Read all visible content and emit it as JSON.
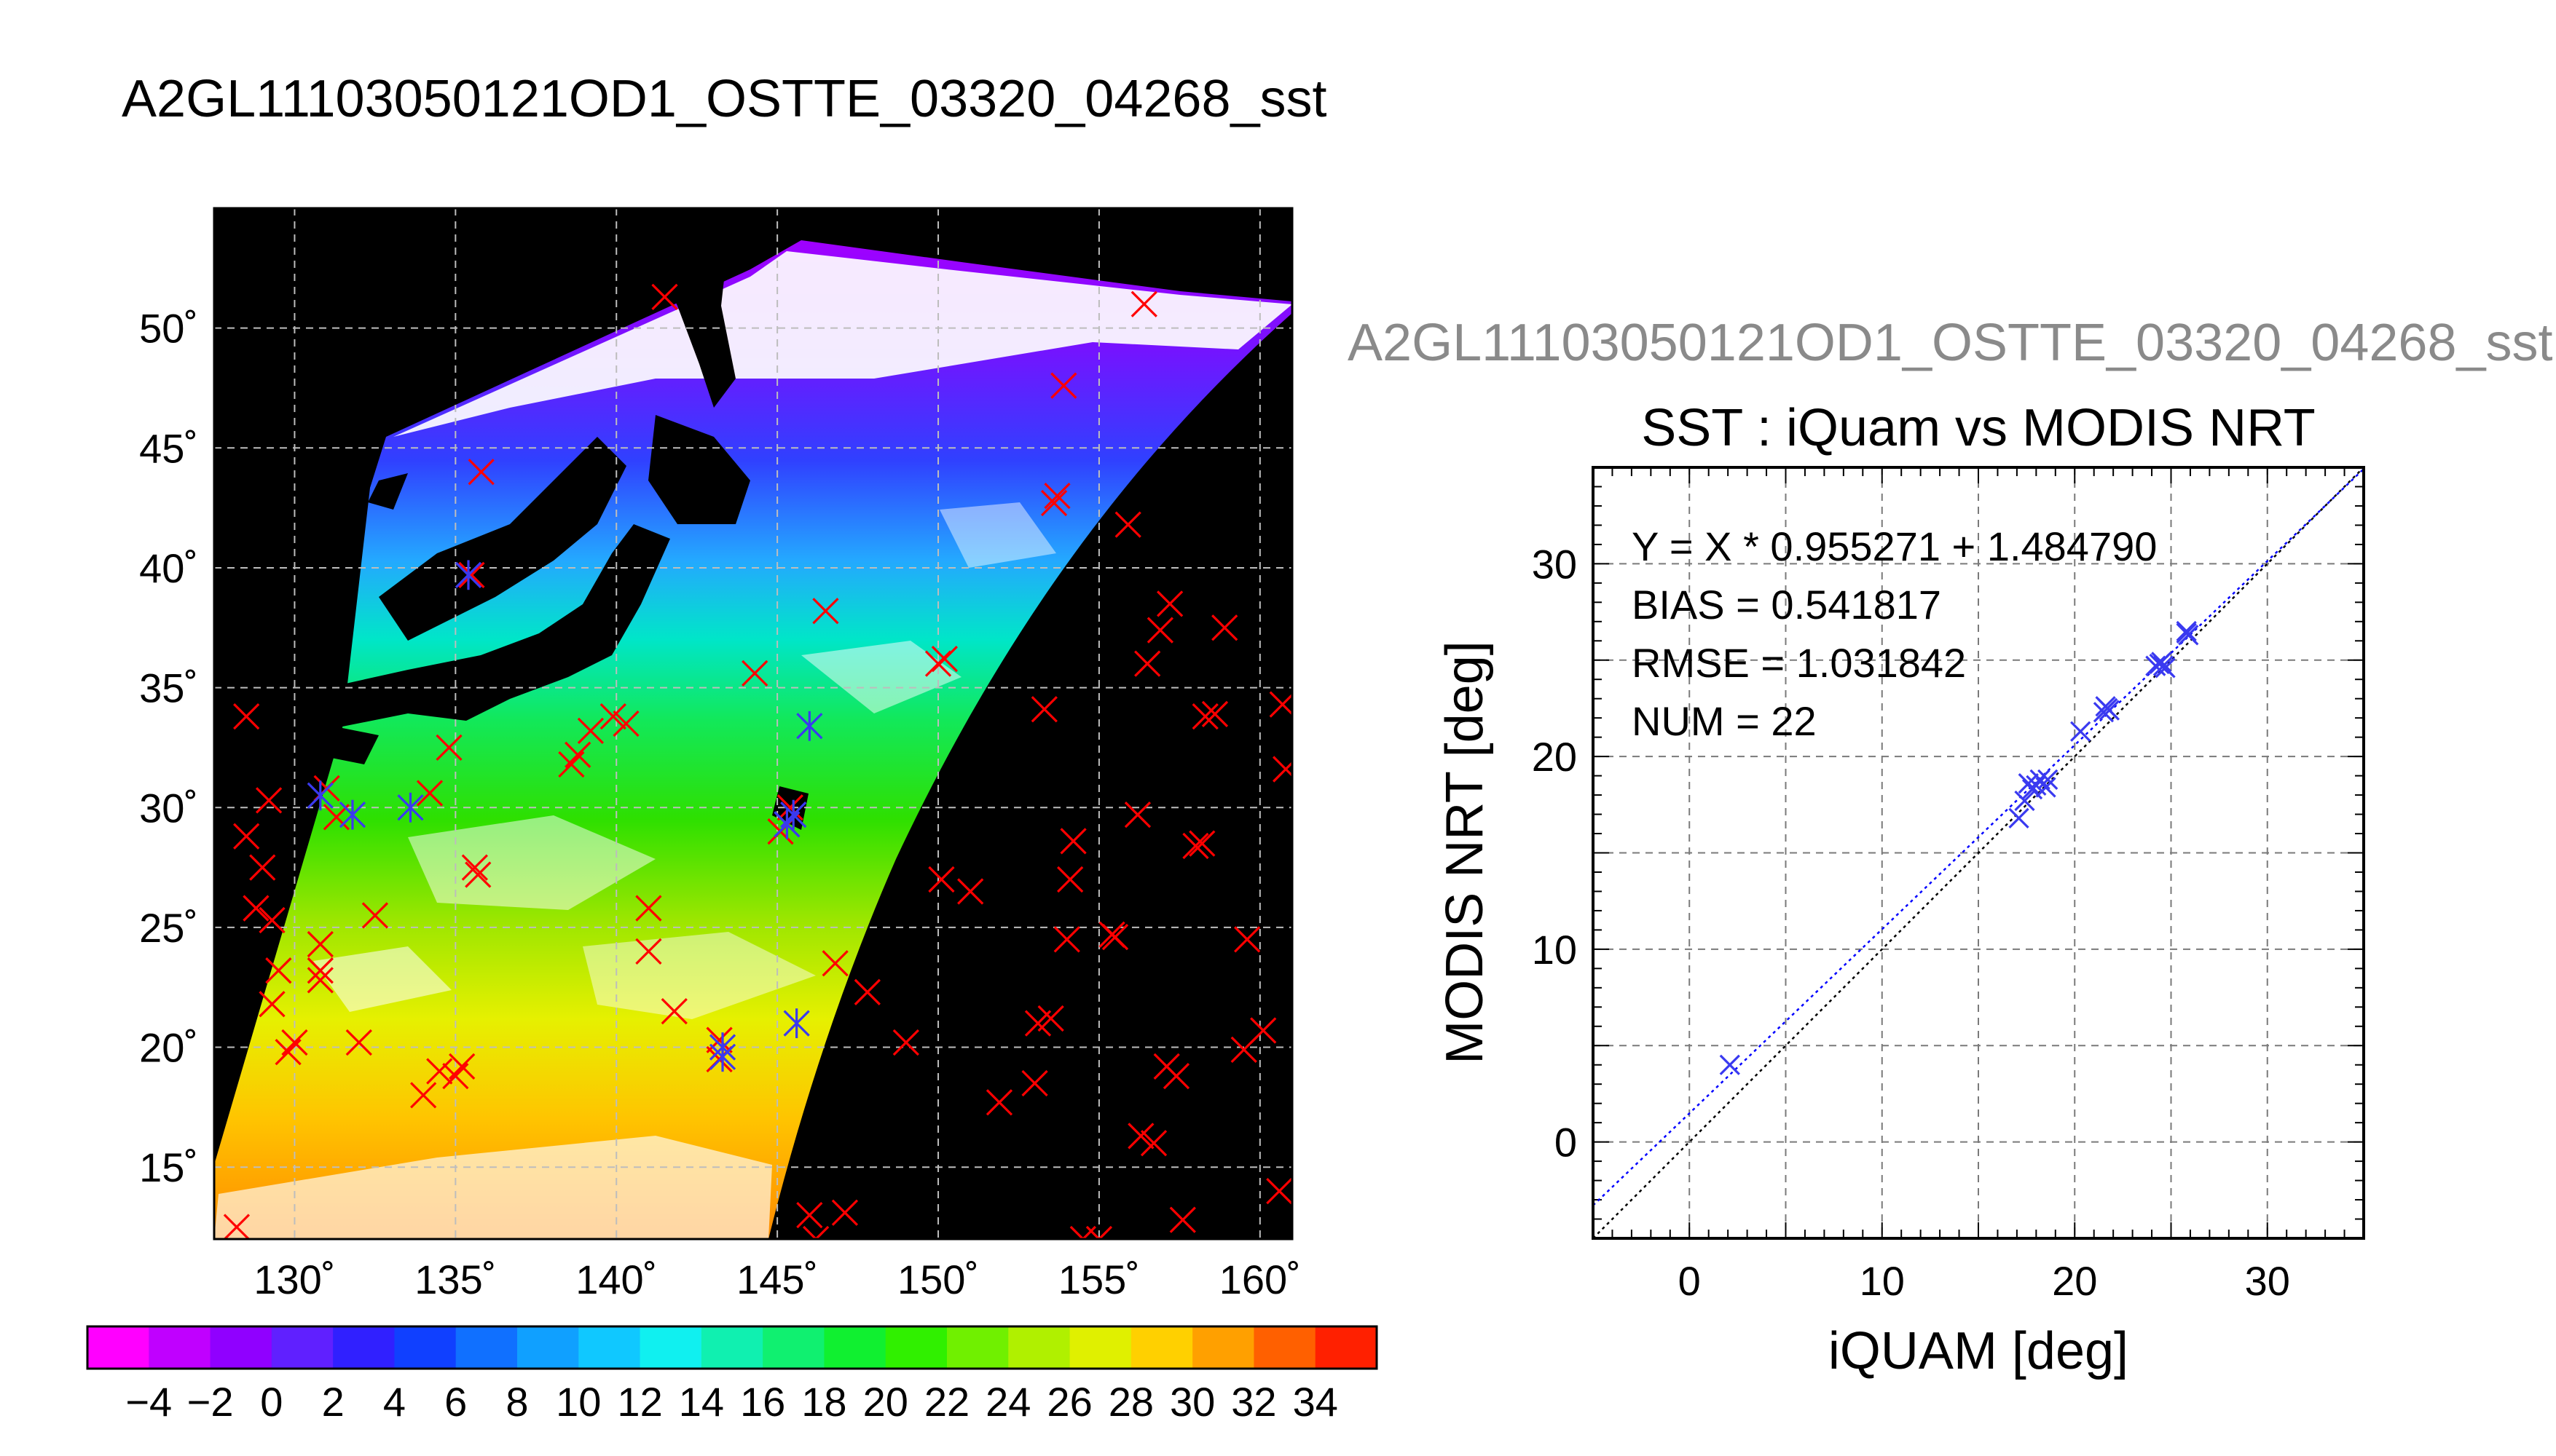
{
  "page_title": "A2GL11103050121OD1_OSTTE_03320_04268_sst",
  "chart_data": [
    {
      "type": "map",
      "title": "A2GL11103050121OD1_OSTTE_03320_04268_sst",
      "x_ticks": [
        "130˚",
        "135˚",
        "140˚",
        "145˚",
        "150˚",
        "155˚",
        "160˚"
      ],
      "x_tick_values": [
        130,
        135,
        140,
        145,
        150,
        155,
        160
      ],
      "y_ticks": [
        "15˚",
        "20˚",
        "25˚",
        "30˚",
        "35˚",
        "40˚",
        "45˚",
        "50˚"
      ],
      "y_tick_values": [
        15,
        20,
        25,
        30,
        35,
        40,
        45,
        50
      ],
      "xlim": [
        127.5,
        161
      ],
      "ylim": [
        12,
        55
      ],
      "grid": true,
      "colorbar": {
        "labels": [
          "−4",
          "−2",
          "0",
          "2",
          "4",
          "6",
          "8",
          "10",
          "12",
          "14",
          "16",
          "18",
          "20",
          "22",
          "24",
          "26",
          "28",
          "30",
          "32",
          "34"
        ],
        "range": [
          -5,
          35
        ]
      },
      "red_markers": [
        [
          128.5,
          33.8
        ],
        [
          129.2,
          30.3
        ],
        [
          128.5,
          28.8
        ],
        [
          129.0,
          27.5
        ],
        [
          128.8,
          25.8
        ],
        [
          129.3,
          25.3
        ],
        [
          129.5,
          23.2
        ],
        [
          129.3,
          21.8
        ],
        [
          130.0,
          20.2
        ],
        [
          129.8,
          19.8
        ],
        [
          130.8,
          24.3
        ],
        [
          130.8,
          22.8
        ],
        [
          130.8,
          23.2
        ],
        [
          131.0,
          30.8
        ],
        [
          131.3,
          29.6
        ],
        [
          132.0,
          20.2
        ],
        [
          132.5,
          25.5
        ],
        [
          134.0,
          18.0
        ],
        [
          134.5,
          19.0
        ],
        [
          135.0,
          18.8
        ],
        [
          135.2,
          19.2
        ],
        [
          134.8,
          32.5
        ],
        [
          134.2,
          30.6
        ],
        [
          135.7,
          27.2
        ],
        [
          135.6,
          27.5
        ],
        [
          135.8,
          44.0
        ],
        [
          135.5,
          39.7
        ],
        [
          138.6,
          31.8
        ],
        [
          138.8,
          32.2
        ],
        [
          139.2,
          33.2
        ],
        [
          139.9,
          33.8
        ],
        [
          140.3,
          33.5
        ],
        [
          141.0,
          25.8
        ],
        [
          141.0,
          24.0
        ],
        [
          141.8,
          21.5
        ],
        [
          141.5,
          51.3
        ],
        [
          143.2,
          19.5
        ],
        [
          143.2,
          20.3
        ],
        [
          144.3,
          35.6
        ],
        [
          145.4,
          30.0
        ],
        [
          145.1,
          29.0
        ],
        [
          146.5,
          38.2
        ],
        [
          146.8,
          23.5
        ],
        [
          147.8,
          22.3
        ],
        [
          146.0,
          13.0
        ],
        [
          147.1,
          13.1
        ],
        [
          149.0,
          20.2
        ],
        [
          150.0,
          36.0
        ],
        [
          150.2,
          36.2
        ],
        [
          150.1,
          27.0
        ],
        [
          151.0,
          26.5
        ],
        [
          151.9,
          17.7
        ],
        [
          153.0,
          18.5
        ],
        [
          153.1,
          21.0
        ],
        [
          153.5,
          21.2
        ],
        [
          153.3,
          34.1
        ],
        [
          153.6,
          42.7
        ],
        [
          153.7,
          43.0
        ],
        [
          153.9,
          47.6
        ],
        [
          154.0,
          24.5
        ],
        [
          154.1,
          27.0
        ],
        [
          154.2,
          28.6
        ],
        [
          155.5,
          24.6
        ],
        [
          155.9,
          41.8
        ],
        [
          156.2,
          29.7
        ],
        [
          156.3,
          16.3
        ],
        [
          156.5,
          36.0
        ],
        [
          156.7,
          16.0
        ],
        [
          156.9,
          37.4
        ],
        [
          157.2,
          38.5
        ],
        [
          157.1,
          19.2
        ],
        [
          157.4,
          18.8
        ],
        [
          157.6,
          12.8
        ],
        [
          156.4,
          51.0
        ],
        [
          158.2,
          28.5
        ],
        [
          158.0,
          28.4
        ],
        [
          158.3,
          33.8
        ],
        [
          158.6,
          33.9
        ],
        [
          158.9,
          37.5
        ],
        [
          159.5,
          19.9
        ],
        [
          159.6,
          24.5
        ],
        [
          160.1,
          20.7
        ],
        [
          160.6,
          14.0
        ],
        [
          160.8,
          31.6
        ],
        [
          160.7,
          34.3
        ],
        [
          155.0,
          12.0
        ],
        [
          154.5,
          12.0
        ],
        [
          146.2,
          12.0
        ],
        [
          128.2,
          12.5
        ],
        [
          155.4,
          24.7
        ]
      ],
      "blue_markers": [
        [
          130.8,
          30.5
        ],
        [
          131.8,
          29.7
        ],
        [
          133.6,
          30.0
        ],
        [
          135.4,
          39.7
        ],
        [
          143.3,
          20.0
        ],
        [
          143.3,
          19.6
        ],
        [
          145.3,
          29.3
        ],
        [
          145.5,
          29.7
        ],
        [
          145.6,
          21.0
        ],
        [
          146.0,
          33.4
        ]
      ]
    },
    {
      "type": "scatter",
      "title": "SST : iQuam vs MODIS NRT",
      "title_above": "A2GL11103050121OD1_OSTTE_03320_04268_sst",
      "xlabel": "iQUAM [deg]",
      "ylabel": "MODIS NRT [deg]",
      "xlim": [
        -5,
        35
      ],
      "ylim": [
        -5,
        35
      ],
      "x_ticks": [
        "0",
        "10",
        "20",
        "30"
      ],
      "y_ticks": [
        "0",
        "10",
        "20",
        "30"
      ],
      "tick_values": [
        0,
        10,
        20,
        30
      ],
      "grid": true,
      "annotations": [
        "Y = X * 0.955271 + 1.484790",
        "BIAS = 0.541817",
        "RMSE = 1.031842",
        "NUM = 22"
      ],
      "fit": {
        "slope": 0.955271,
        "intercept": 1.48479
      },
      "points": [
        [
          2.1,
          4.0
        ],
        [
          17.1,
          16.8
        ],
        [
          17.4,
          17.7
        ],
        [
          17.6,
          18.6
        ],
        [
          17.8,
          18.3
        ],
        [
          18.2,
          18.8
        ],
        [
          18.5,
          18.4
        ],
        [
          18.6,
          18.8
        ],
        [
          20.3,
          21.3
        ],
        [
          21.5,
          22.3
        ],
        [
          21.6,
          22.6
        ],
        [
          21.8,
          22.4
        ],
        [
          24.2,
          24.7
        ],
        [
          24.4,
          24.8
        ],
        [
          24.5,
          24.9
        ],
        [
          24.7,
          24.6
        ],
        [
          25.8,
          26.4
        ],
        [
          25.9,
          26.3
        ],
        [
          18.0,
          18.5
        ],
        [
          21.7,
          22.5
        ],
        [
          24.6,
          24.7
        ],
        [
          25.8,
          26.5
        ]
      ]
    }
  ],
  "colors": {
    "red_marker": "#ff0000",
    "blue_marker": "#3a3af0",
    "fit_line": "#0000ff",
    "one_to_one": "#000000",
    "land": "#000000",
    "grid": "#b8b8b8",
    "gray_title": "#8a8a8a"
  }
}
